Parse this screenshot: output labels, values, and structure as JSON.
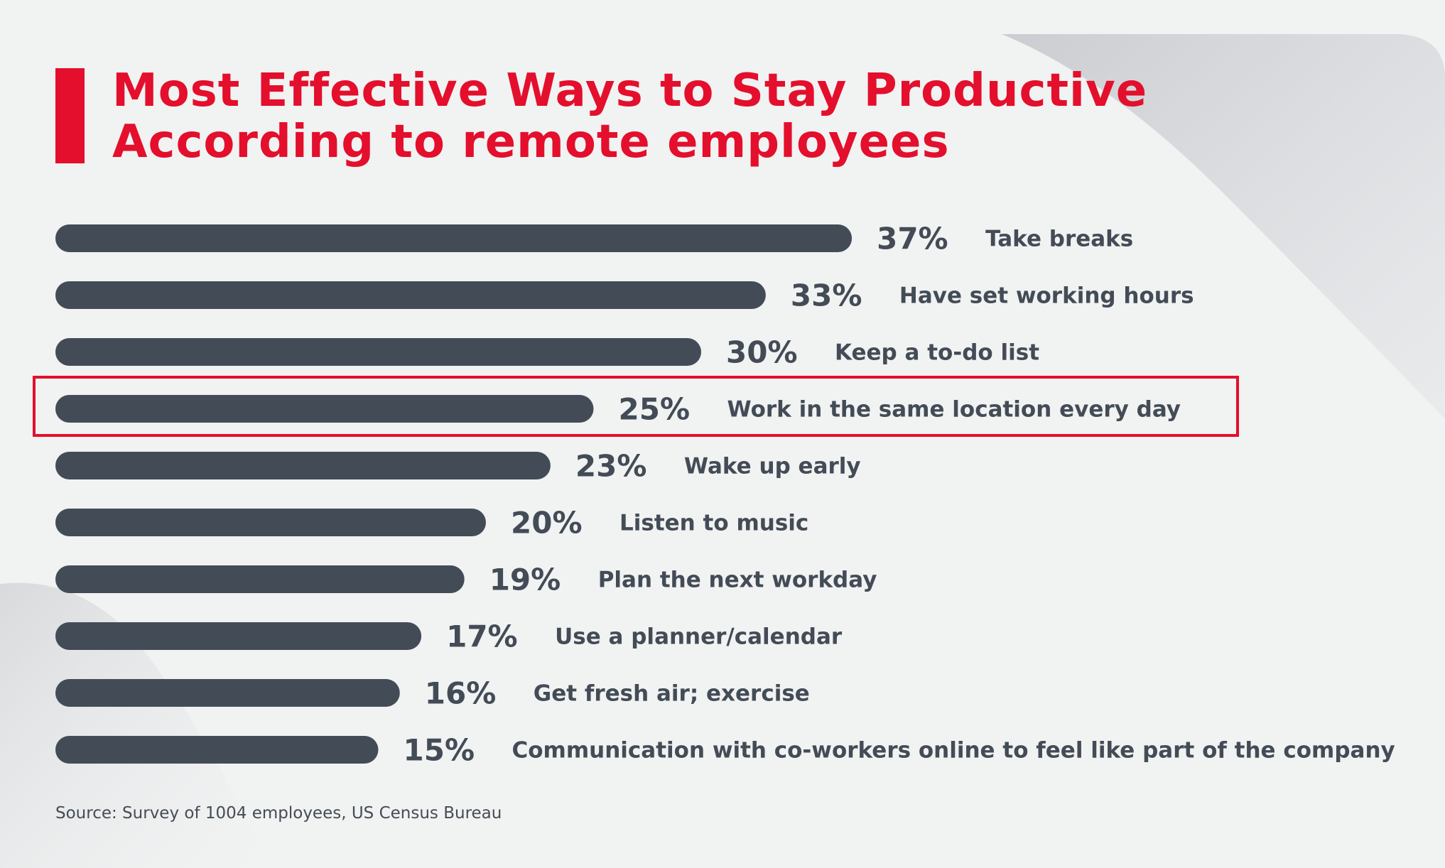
{
  "colors": {
    "accent": "#e30f2c",
    "bar": "#434c56",
    "text": "#434c56",
    "background": "#f1f2f2",
    "highlight_box": "#e30f2c"
  },
  "title": {
    "line1": "Most Effective Ways to Stay Productive",
    "line2": "According to remote employees"
  },
  "source": "Source: Survey of 1004 employees, US Census Bureau",
  "chart_data": {
    "type": "bar",
    "orientation": "horizontal",
    "title": "Most Effective Ways to Stay Productive According to remote employees",
    "unit": "%",
    "categories": [
      "Take breaks",
      "Have set working hours",
      "Keep a to-do list",
      "Work in the same location every day",
      "Wake up early",
      "Listen to music",
      "Plan the next workday",
      "Use a planner/calendar",
      "Get fresh air; exercise",
      "Communication with co-workers online to feel like part of the company"
    ],
    "values": [
      37,
      33,
      30,
      25,
      23,
      20,
      19,
      17,
      16,
      15
    ],
    "value_labels": [
      "37%",
      "33%",
      "30%",
      "25%",
      "23%",
      "20%",
      "19%",
      "17%",
      "16%",
      "15%"
    ],
    "highlighted_category": "Work in the same location every day",
    "grid": false
  }
}
